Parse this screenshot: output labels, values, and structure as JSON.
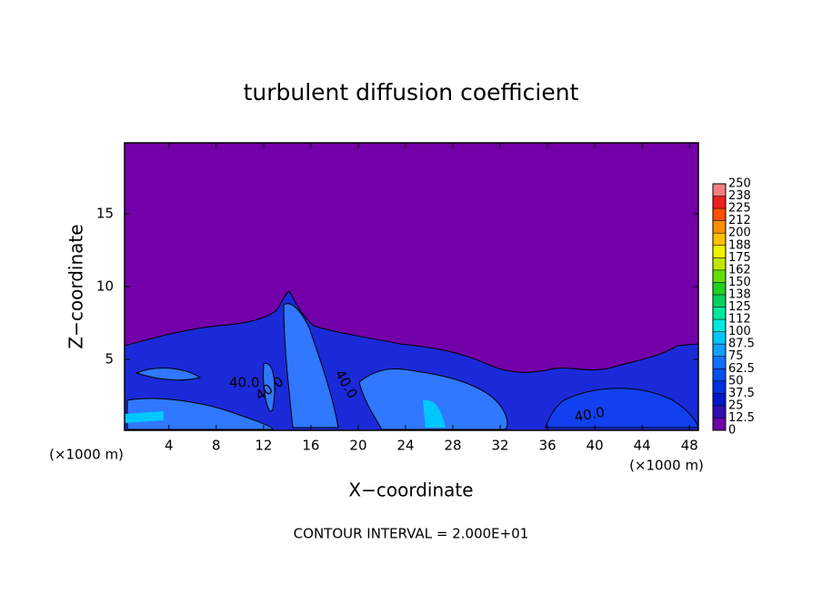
{
  "chart_data": {
    "type": "contour",
    "title": "turbulent diffusion coefficient",
    "x_label": "X−coordinate",
    "y_label": "Z−coordinate",
    "x_unit": "(×1000 m)",
    "footer": "CONTOUR INTERVAL = 2.000E+01",
    "contour_label": {
      "value": 40,
      "label": "40.0"
    },
    "xlim": [
      0.25,
      48.75
    ],
    "ylim": [
      0.125,
      19.875
    ],
    "xticks": [
      4,
      8,
      12,
      16,
      20,
      24,
      28,
      32,
      36,
      40,
      44,
      48
    ],
    "yticks": [
      5,
      10,
      15
    ],
    "colorbar": {
      "lim": [
        0,
        250
      ],
      "ticks": [
        0,
        12.5,
        25,
        37.5,
        50,
        62.5,
        75,
        87.5,
        100,
        {
          "value": 112.5,
          "label": "112"
        },
        125,
        {
          "value": 137.5,
          "label": "138"
        },
        150,
        {
          "value": 162.5,
          "label": "162"
        },
        175,
        {
          "value": 187.5,
          "label": "188"
        },
        200,
        {
          "value": 212.5,
          "label": "212"
        },
        225,
        {
          "value": 237.5,
          "label": "238"
        },
        250
      ],
      "colors": [
        "#7000a8",
        "#3010b0",
        "#0018c8",
        "#0030e0",
        "#0050f0",
        "#1070ff",
        "#10a0ff",
        "#00c8ff",
        "#00e8e0",
        "#00e8a0",
        "#00d060",
        "#20d020",
        "#60e000",
        "#c0e800",
        "#f0f000",
        "#ffc000",
        "#ff9000",
        "#ff5000",
        "#f02020",
        "#f08080"
      ]
    }
  }
}
